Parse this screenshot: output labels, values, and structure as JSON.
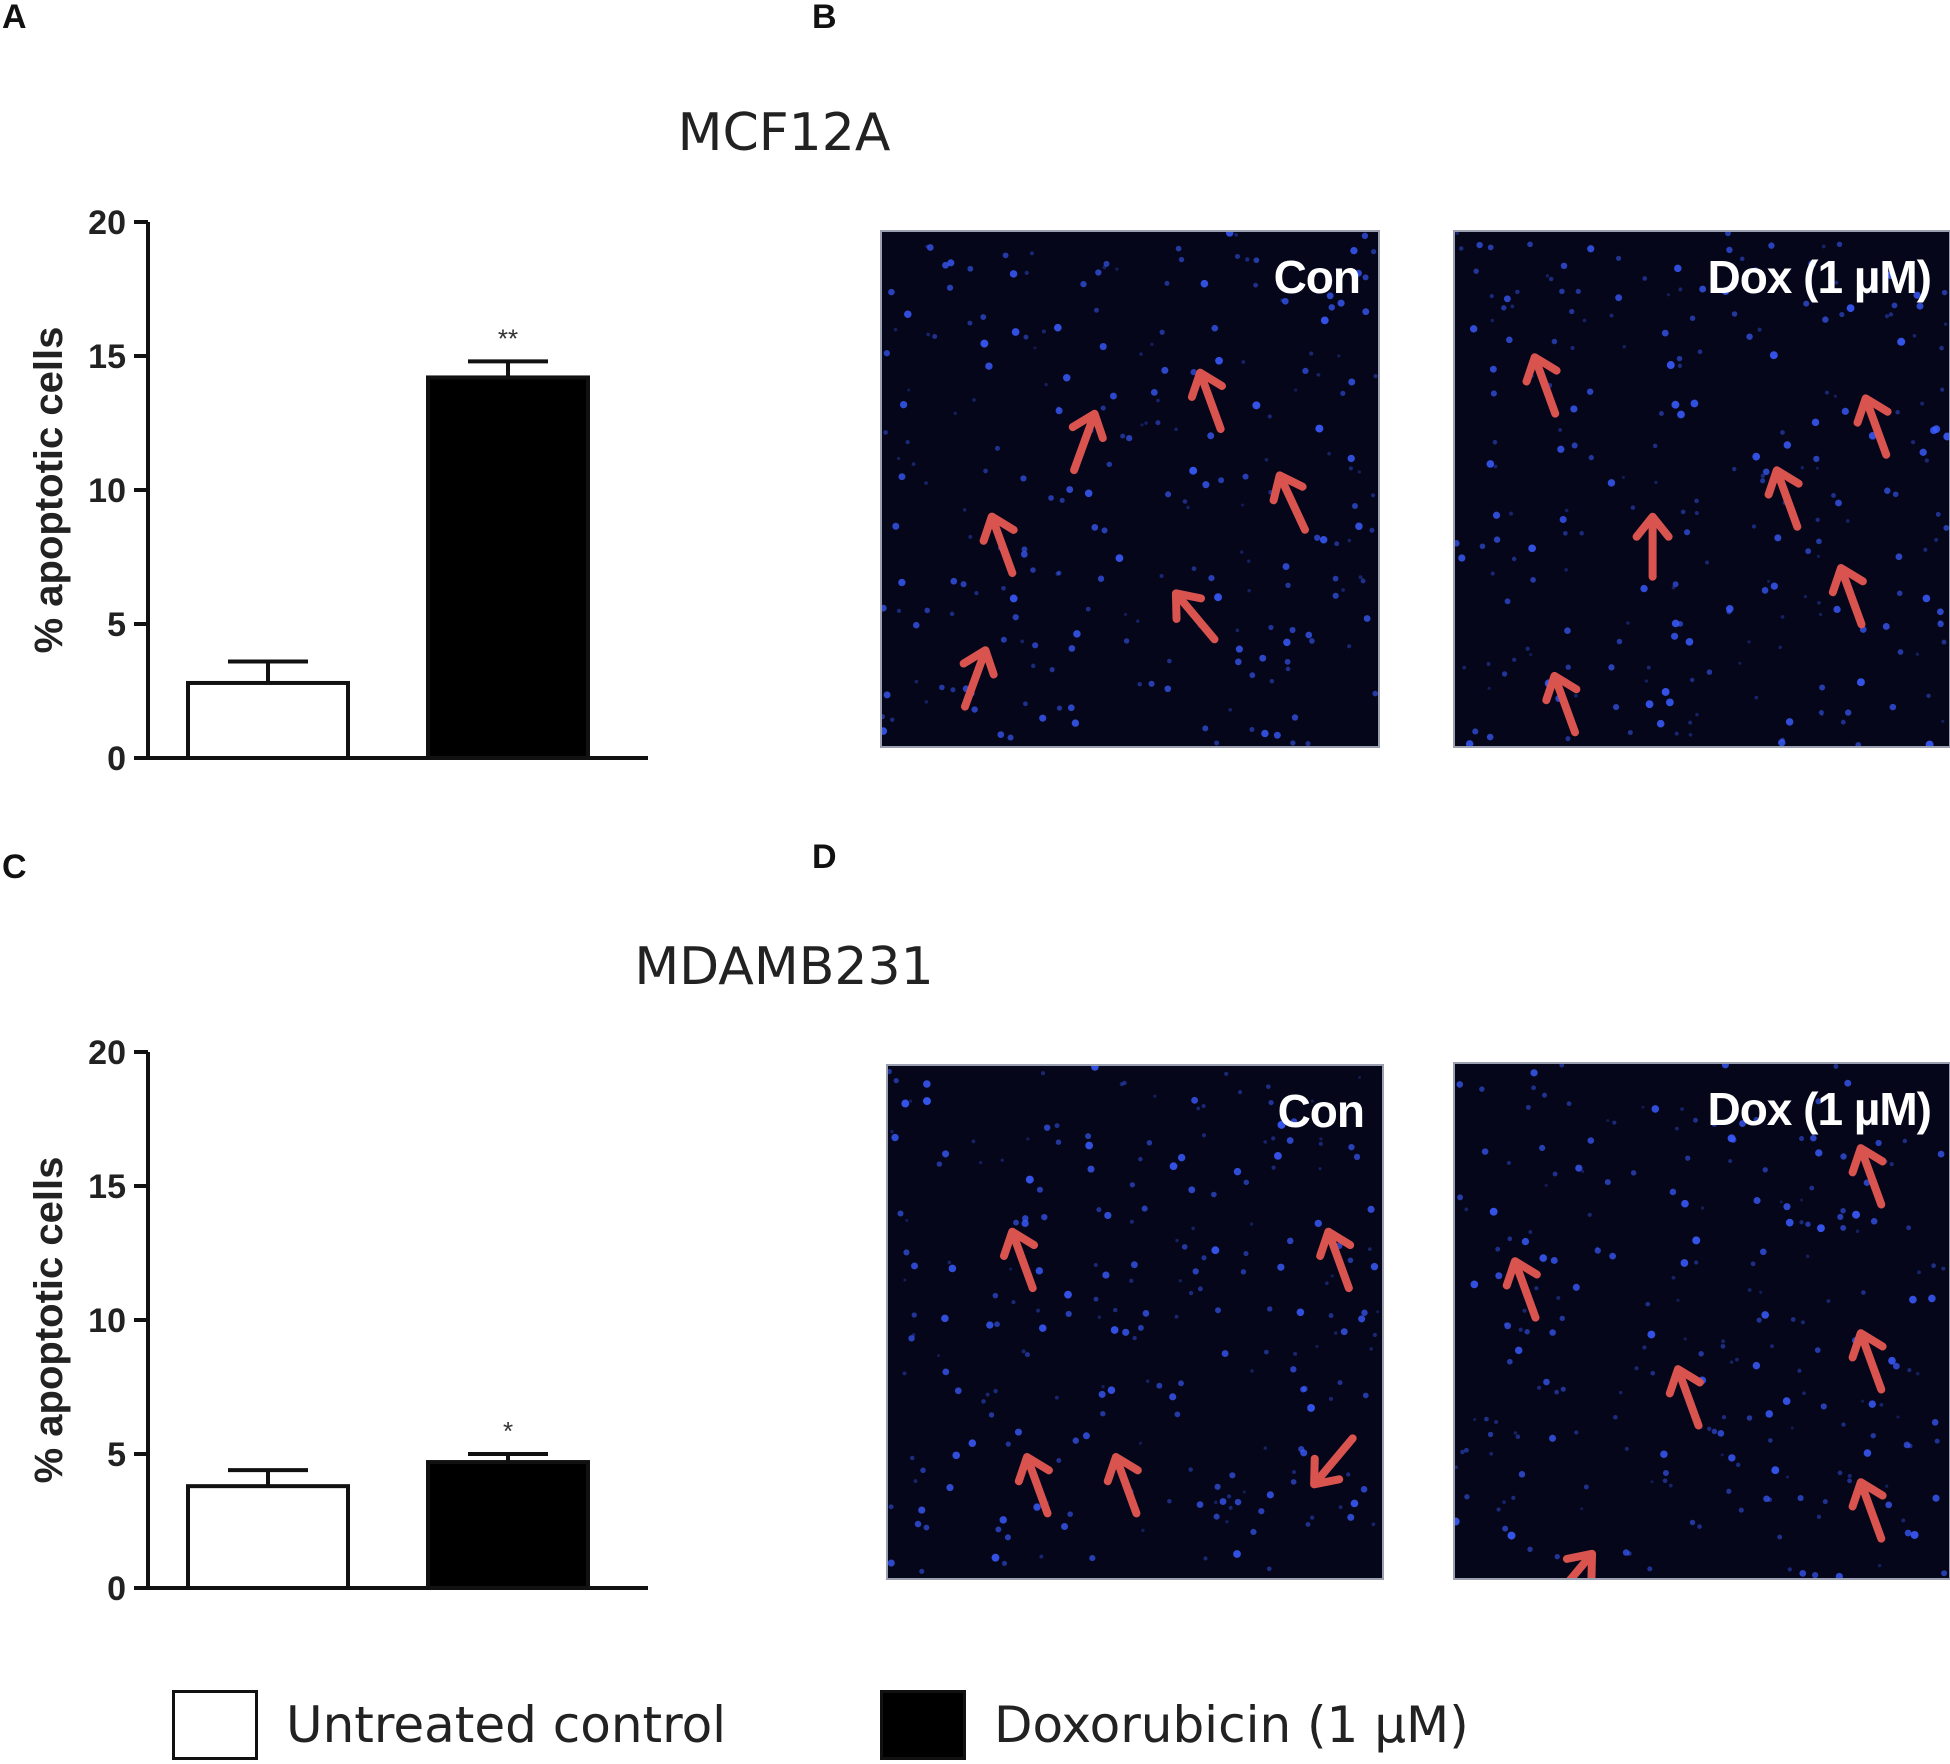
{
  "panels": {
    "a": {
      "letter": "A"
    },
    "b": {
      "letter": "B"
    },
    "c": {
      "letter": "C"
    },
    "d": {
      "letter": "D"
    }
  },
  "rows": {
    "top": {
      "title": "MCF12A"
    },
    "bottom": {
      "title": "MDAMB231"
    }
  },
  "colors": {
    "control_fill": "#ffffff",
    "treated_fill": "#000000",
    "nuclei": "#3a5cff",
    "arrow": "#d9534f",
    "micrograph_bg": "#05061a"
  },
  "micrographs": {
    "top_con": {
      "label": "Con"
    },
    "top_dox": {
      "label": "Dox (1 µM)"
    },
    "bottom_con": {
      "label": "Con"
    },
    "bottom_dox": {
      "label": "Dox (1 µM)"
    }
  },
  "legend": {
    "control": "Untreated control",
    "treated": "Doxorubicin (1 µM)"
  },
  "chart_data": [
    {
      "type": "bar",
      "panel": "A",
      "ylabel": "% apoptotic cells",
      "ylim": [
        0,
        20
      ],
      "yticks": [
        "0",
        "5",
        "10",
        "15",
        "20"
      ],
      "categories": [
        "Untreated control",
        "Doxorubicin (1 µM)"
      ],
      "values": [
        2.8,
        14.2
      ],
      "errors": [
        0.8,
        0.6
      ],
      "significance": [
        "",
        "**"
      ]
    },
    {
      "type": "bar",
      "panel": "C",
      "ylabel": "% apoptotic cells",
      "ylim": [
        0,
        20
      ],
      "yticks": [
        "0",
        "5",
        "10",
        "15",
        "20"
      ],
      "categories": [
        "Untreated control",
        "Doxorubicin (1 µM)"
      ],
      "values": [
        3.8,
        4.7
      ],
      "errors": [
        0.6,
        0.3
      ],
      "significance": [
        "",
        "*"
      ]
    }
  ]
}
